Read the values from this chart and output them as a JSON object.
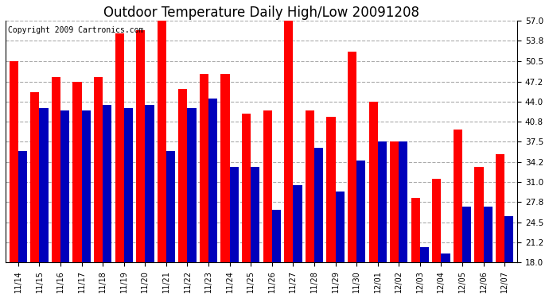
{
  "title": "Outdoor Temperature Daily High/Low 20091208",
  "copyright": "Copyright 2009 Cartronics.com",
  "dates": [
    "11/14",
    "11/15",
    "11/16",
    "11/17",
    "11/18",
    "11/19",
    "11/20",
    "11/21",
    "11/22",
    "11/23",
    "11/24",
    "11/25",
    "11/26",
    "11/27",
    "11/28",
    "11/29",
    "11/30",
    "12/01",
    "12/02",
    "12/03",
    "12/04",
    "12/05",
    "12/06",
    "12/07"
  ],
  "highs": [
    50.5,
    45.5,
    48.0,
    47.2,
    48.0,
    55.0,
    55.5,
    57.0,
    46.0,
    48.5,
    48.5,
    42.0,
    42.5,
    57.0,
    42.5,
    41.5,
    52.0,
    44.0,
    37.5,
    28.5,
    31.5,
    39.5,
    33.5,
    35.5
  ],
  "lows": [
    36.0,
    43.0,
    42.5,
    42.5,
    43.5,
    43.0,
    43.5,
    36.0,
    43.0,
    44.5,
    33.5,
    33.5,
    26.5,
    30.5,
    36.5,
    29.5,
    34.5,
    37.5,
    37.5,
    20.5,
    19.5,
    27.0,
    27.0,
    25.5
  ],
  "high_color": "#ff0000",
  "low_color": "#0000bb",
  "yticks": [
    18.0,
    21.2,
    24.5,
    27.8,
    31.0,
    34.2,
    37.5,
    40.8,
    44.0,
    47.2,
    50.5,
    53.8,
    57.0
  ],
  "ymin": 18.0,
  "ymax": 57.0,
  "bg_color": "#ffffff",
  "grid_color": "#aaaaaa",
  "title_fontsize": 12,
  "copyright_fontsize": 7,
  "bar_width": 0.42
}
